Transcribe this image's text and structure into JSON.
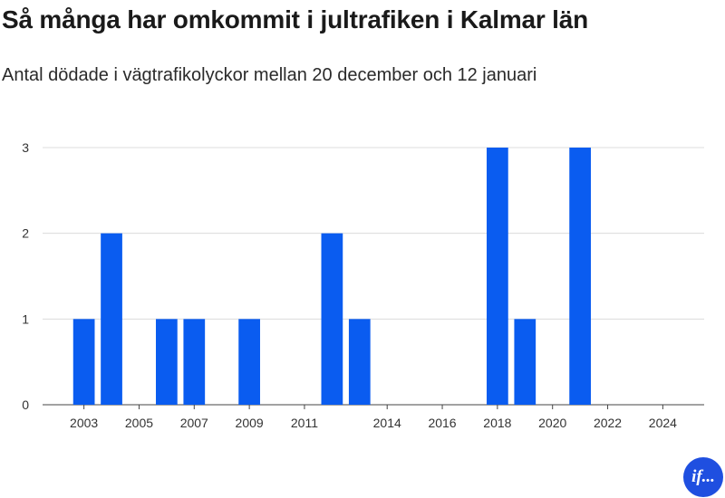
{
  "chart_data": {
    "type": "bar",
    "title": "Så många har omkommit i jultrafiken i Kalmar län",
    "subtitle": "Antal dödade i vägtrafikolyckor mellan 20 december och 12 januari",
    "x": [
      2003,
      2004,
      2005,
      2006,
      2007,
      2008,
      2009,
      2010,
      2011,
      2012,
      2013,
      2014,
      2015,
      2016,
      2017,
      2018,
      2019,
      2020,
      2021,
      2022,
      2023,
      2024
    ],
    "values": [
      1,
      2,
      0,
      1,
      1,
      0,
      1,
      0,
      0,
      2,
      1,
      0,
      0,
      0,
      0,
      3,
      1,
      0,
      3,
      0,
      0,
      0
    ],
    "x_tick_labels": [
      {
        "x": 2003,
        "label": "2003"
      },
      {
        "x": 2005,
        "label": "2005"
      },
      {
        "x": 2007,
        "label": "2007"
      },
      {
        "x": 2009,
        "label": "2009"
      },
      {
        "x": 2011,
        "label": "2011"
      },
      {
        "x": 2014,
        "label": "2014"
      },
      {
        "x": 2016,
        "label": "2016"
      },
      {
        "x": 2018,
        "label": "2018"
      },
      {
        "x": 2020,
        "label": "2020"
      },
      {
        "x": 2022,
        "label": "2022"
      },
      {
        "x": 2024,
        "label": "2024"
      }
    ],
    "y_ticks": [
      0,
      1,
      2,
      3
    ],
    "ylim": [
      0,
      3
    ],
    "xlim": [
      2001.5,
      2025.5
    ],
    "xlabel": "",
    "ylabel": "",
    "grid": true,
    "legend": "none",
    "bar_color": "#0a5cf0",
    "grid_color": "#dcdcdc"
  },
  "logo": {
    "text": "if...",
    "color": "#1f4fe0"
  }
}
